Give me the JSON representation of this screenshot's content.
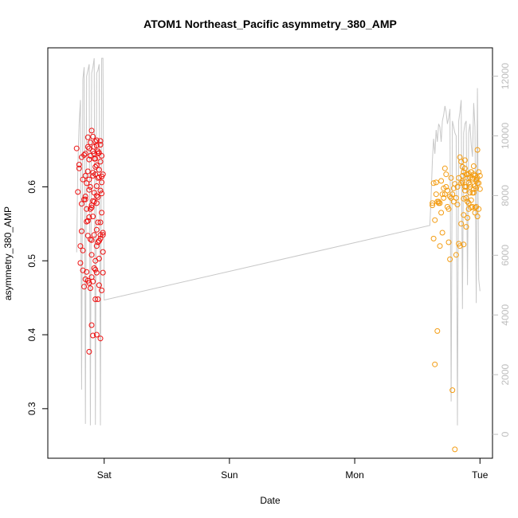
{
  "chart_data": {
    "type": "scatter",
    "title": "ATOM1 Northeast_Pacific asymmetry_380_AMP",
    "xlabel": "Date",
    "ylabel": "asymmetry_380_AMP",
    "x_ticks": [
      "Sat",
      "Sun",
      "Mon",
      "Tue"
    ],
    "x_tick_values": [
      1.0,
      2.0,
      3.0,
      4.0
    ],
    "xlim": [
      0.55,
      4.1
    ],
    "ylim": [
      0.233,
      0.788
    ],
    "y_ticks": [
      0.3,
      0.4,
      0.5,
      0.6
    ],
    "y_tick_labels": [
      "0.3",
      "0.4",
      "0.5",
      "0.6"
    ],
    "y2_ticks": [
      0,
      2000,
      4000,
      6000,
      8000,
      10000,
      12000
    ],
    "y2_tick_labels": [
      "0",
      "2000",
      "4000",
      "6000",
      "8000",
      "10000",
      "12000"
    ],
    "y2lim": [
      -800,
      12950
    ],
    "grid": false,
    "colors": {
      "series_1": "#ee1111",
      "series_2": "#f39c12",
      "line": "#c8c8c8",
      "axis": "#000000",
      "axis_right": "#bdbdbd"
    },
    "series": [
      {
        "color": "#ee1111",
        "x": [
          0.78,
          0.85,
          0.8,
          0.88,
          0.79,
          0.83,
          0.82,
          0.87,
          0.9,
          0.93,
          0.8,
          0.95,
          0.84,
          0.87,
          0.92,
          0.97,
          0.84,
          0.88,
          0.92,
          0.94,
          0.98,
          0.81,
          0.85,
          0.89,
          0.93,
          0.96,
          0.99,
          0.82,
          0.86,
          0.9,
          0.94,
          0.97,
          0.81,
          0.83,
          0.87,
          0.91,
          0.95,
          0.98,
          0.83,
          0.87,
          0.9,
          0.94,
          0.97,
          0.89,
          0.92,
          0.95,
          0.99,
          0.9,
          0.94,
          0.97,
          0.85,
          0.88,
          0.92,
          0.96,
          0.99,
          0.93,
          0.96,
          0.99,
          0.9,
          0.94,
          0.97,
          0.88,
          0.91,
          0.95,
          0.98,
          0.91,
          0.94,
          0.96,
          0.99,
          0.91,
          0.94,
          0.97,
          0.94,
          0.96,
          0.98,
          0.86,
          0.89,
          0.93,
          0.96,
          0.88,
          0.9,
          0.92,
          0.95,
          0.98,
          0.84,
          0.87,
          0.9,
          0.93,
          0.86,
          0.89,
          0.92,
          0.95,
          0.98,
          0.88,
          0.91,
          0.94,
          0.97,
          0.86,
          0.91,
          0.94,
          0.97,
          0.82,
          0.85,
          0.88,
          0.91,
          0.93,
          0.95,
          0.89,
          0.92,
          0.89,
          0.91,
          0.85,
          0.87,
          0.93,
          0.96
        ],
        "y": [
          0.652,
          0.645,
          0.63,
          0.652,
          0.593,
          0.61,
          0.64,
          0.667,
          0.676,
          0.661,
          0.625,
          0.645,
          0.643,
          0.654,
          0.645,
          0.662,
          0.583,
          0.61,
          0.638,
          0.656,
          0.642,
          0.52,
          0.583,
          0.6,
          0.617,
          0.613,
          0.617,
          0.54,
          0.57,
          0.575,
          0.588,
          0.595,
          0.497,
          0.514,
          0.554,
          0.581,
          0.552,
          0.565,
          0.487,
          0.534,
          0.528,
          0.542,
          0.535,
          0.529,
          0.535,
          0.525,
          0.538,
          0.508,
          0.52,
          0.53,
          0.475,
          0.47,
          0.49,
          0.503,
          0.535,
          0.448,
          0.467,
          0.484,
          0.413,
          0.4,
          0.395,
          0.377,
          0.399,
          0.448,
          0.46,
          0.472,
          0.484,
          0.527,
          0.512,
          0.56,
          0.578,
          0.552,
          0.601,
          0.623,
          0.614,
          0.485,
          0.463,
          0.5,
          0.527,
          0.559,
          0.572,
          0.592,
          0.612,
          0.606,
          0.465,
          0.473,
          0.478,
          0.488,
          0.553,
          0.57,
          0.58,
          0.586,
          0.591,
          0.637,
          0.648,
          0.663,
          0.657,
          0.605,
          0.619,
          0.629,
          0.634,
          0.577,
          0.587,
          0.596,
          0.615,
          0.627,
          0.648,
          0.642,
          0.654,
          0.66,
          0.668,
          0.615,
          0.621,
          0.638,
          0.646
        ]
      },
      {
        "color": "#f39c12",
        "x": [
          3.62,
          3.63,
          3.64,
          3.65,
          3.66,
          3.67,
          3.68,
          3.69,
          3.7,
          3.71,
          3.72,
          3.73,
          3.74,
          3.75,
          3.76,
          3.77,
          3.78,
          3.79,
          3.8,
          3.81,
          3.82,
          3.83,
          3.84,
          3.85,
          3.86,
          3.87,
          3.88,
          3.89,
          3.9,
          3.91,
          3.92,
          3.93,
          3.94,
          3.95,
          3.96,
          3.97,
          3.98,
          3.99,
          4.0,
          3.64,
          3.66,
          3.68,
          3.7,
          3.72,
          3.74,
          3.76,
          3.78,
          3.8,
          3.82,
          3.84,
          3.86,
          3.88,
          3.9,
          3.92,
          3.94,
          3.96,
          3.98,
          4.0,
          3.62,
          3.63,
          3.65,
          3.67,
          3.69,
          3.71,
          3.73,
          3.75,
          3.77,
          3.79,
          3.81,
          3.83,
          3.85,
          3.87,
          3.89,
          3.91,
          3.93,
          3.95,
          3.97,
          3.99,
          3.85,
          3.86,
          3.87,
          3.88,
          3.89,
          3.9,
          3.91,
          3.92,
          3.93,
          3.94,
          3.95,
          3.96,
          3.97,
          3.98,
          3.99,
          3.86,
          3.88,
          3.9,
          3.92,
          3.94,
          3.96,
          3.98,
          3.87,
          3.89,
          3.91,
          3.93,
          3.95,
          3.97
        ],
        "y": [
          0.578,
          0.53,
          0.555,
          0.606,
          0.58,
          0.578,
          0.578,
          0.565,
          0.59,
          0.598,
          0.625,
          0.617,
          0.595,
          0.525,
          0.587,
          0.585,
          0.59,
          0.598,
          0.604,
          0.585,
          0.6,
          0.612,
          0.64,
          0.634,
          0.608,
          0.584,
          0.595,
          0.6,
          0.617,
          0.618,
          0.6,
          0.572,
          0.573,
          0.592,
          0.565,
          0.573,
          0.56,
          0.605,
          0.597,
          0.36,
          0.405,
          0.52,
          0.538,
          0.59,
          0.573,
          0.502,
          0.325,
          0.245,
          0.576,
          0.52,
          0.627,
          0.636,
          0.558,
          0.612,
          0.61,
          0.601,
          0.65,
          0.615,
          0.575,
          0.605,
          0.59,
          0.58,
          0.608,
          0.585,
          0.6,
          0.57,
          0.612,
          0.58,
          0.508,
          0.523,
          0.55,
          0.562,
          0.585,
          0.605,
          0.62,
          0.617,
          0.598,
          0.57,
          0.605,
          0.615,
          0.62,
          0.6,
          0.617,
          0.58,
          0.578,
          0.592,
          0.62,
          0.612,
          0.628,
          0.615,
          0.608,
          0.612,
          0.62,
          0.606,
          0.625,
          0.612,
          0.603,
          0.592,
          0.572,
          0.605,
          0.522,
          0.546,
          0.57,
          0.582,
          0.597,
          0.61
        ]
      }
    ],
    "line_y2": {
      "x": [
        0.78,
        0.79,
        0.8,
        0.81,
        0.82,
        0.83,
        0.84,
        0.85,
        0.86,
        0.87,
        0.88,
        0.89,
        0.9,
        0.91,
        0.92,
        0.93,
        0.94,
        0.95,
        0.96,
        0.97,
        0.98,
        0.99,
        1.0,
        3.6,
        3.61,
        3.62,
        3.63,
        3.64,
        3.65,
        3.66,
        3.67,
        3.68,
        3.69,
        3.7,
        3.71,
        3.72,
        3.73,
        3.74,
        3.75,
        3.76,
        3.77,
        3.78,
        3.79,
        3.8,
        3.81,
        3.82,
        3.83,
        3.84,
        3.85,
        3.86,
        3.87,
        3.88,
        3.89,
        3.9,
        3.91,
        3.92,
        3.93,
        3.94,
        3.95,
        3.96,
        3.97,
        3.98,
        3.99,
        4.0
      ],
      "y": [
        6100,
        9000,
        10400,
        11200,
        1500,
        11900,
        12300,
        350,
        12000,
        12200,
        12400,
        300,
        12100,
        12300,
        12600,
        320,
        12100,
        12200,
        12400,
        300,
        12600,
        12600,
        4500,
        7000,
        8000,
        9200,
        9900,
        9400,
        10200,
        9800,
        10400,
        10300,
        9800,
        10500,
        10700,
        11000,
        10800,
        10400,
        10600,
        10900,
        1100,
        10500,
        10300,
        10100,
        10000,
        300,
        10500,
        10800,
        11200,
        4200,
        10100,
        10400,
        10500,
        5000,
        10100,
        10400,
        9700,
        9300,
        11100,
        10300,
        4400,
        11600,
        5200,
        4800
      ]
    }
  }
}
